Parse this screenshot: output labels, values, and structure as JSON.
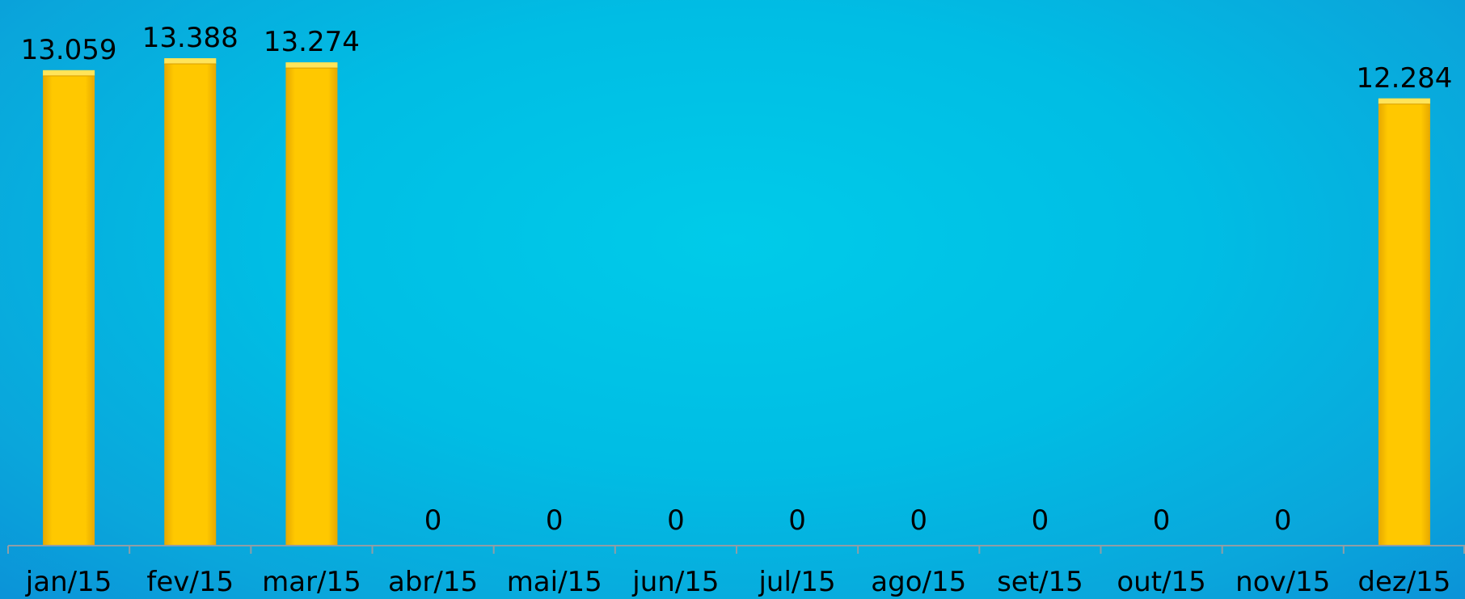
{
  "chart_data": {
    "type": "bar",
    "categories": [
      "jan/15",
      "fev/15",
      "mar/15",
      "abr/15",
      "mai/15",
      "jun/15",
      "jul/15",
      "ago/15",
      "set/15",
      "out/15",
      "nov/15",
      "dez/15"
    ],
    "values": [
      13059,
      13388,
      13274,
      0,
      0,
      0,
      0,
      0,
      0,
      0,
      0,
      12284
    ],
    "value_labels": [
      "13.059",
      "13.388",
      "13.274",
      "0",
      "0",
      "0",
      "0",
      "0",
      "0",
      "0",
      "0",
      "12.284"
    ],
    "title": "",
    "xlabel": "",
    "ylabel": "",
    "ylim": [
      0,
      13700
    ],
    "grid": false,
    "legend": "none",
    "colors": {
      "bar": "#ffc800",
      "bar_highlight": "#ffe45a",
      "bar_shadow": "#d99e00",
      "axis": "#8f9ea6",
      "text": "#000000"
    }
  }
}
